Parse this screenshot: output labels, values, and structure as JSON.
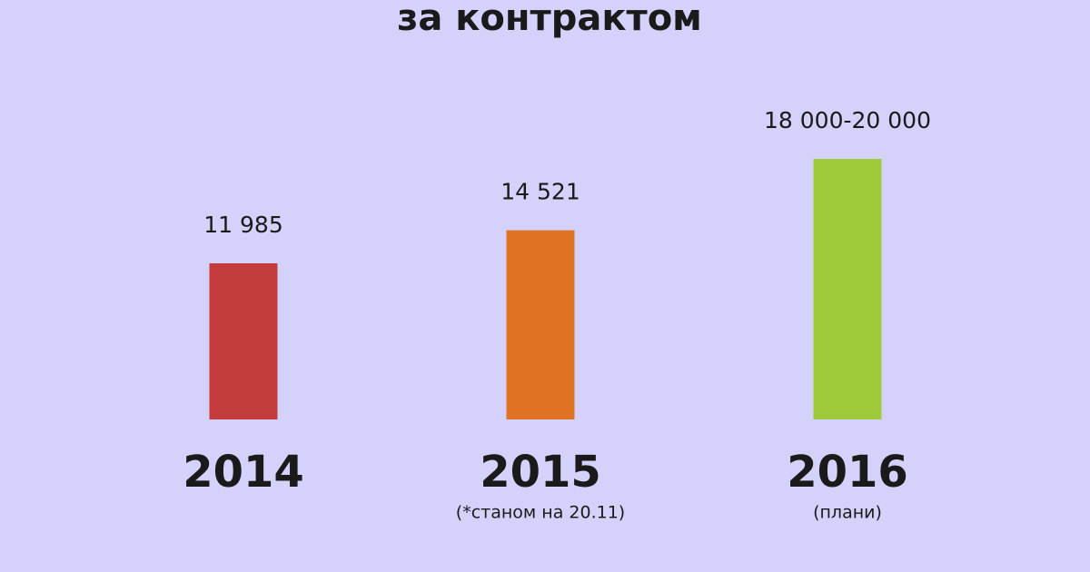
{
  "chart_data": {
    "type": "bar",
    "title": "за контрактом",
    "categories": [
      "2014",
      "2015",
      "2016"
    ],
    "category_notes": [
      null,
      "(*станом на 20.11)",
      "(плани)"
    ],
    "series": [
      {
        "colors": [
          "#c43c3c",
          "#e07224",
          "#9fca3c"
        ],
        "values": [
          11985,
          14521,
          20000
        ],
        "value_labels": [
          "11 985",
          "14 521",
          "18 000-20 000"
        ]
      }
    ]
  }
}
